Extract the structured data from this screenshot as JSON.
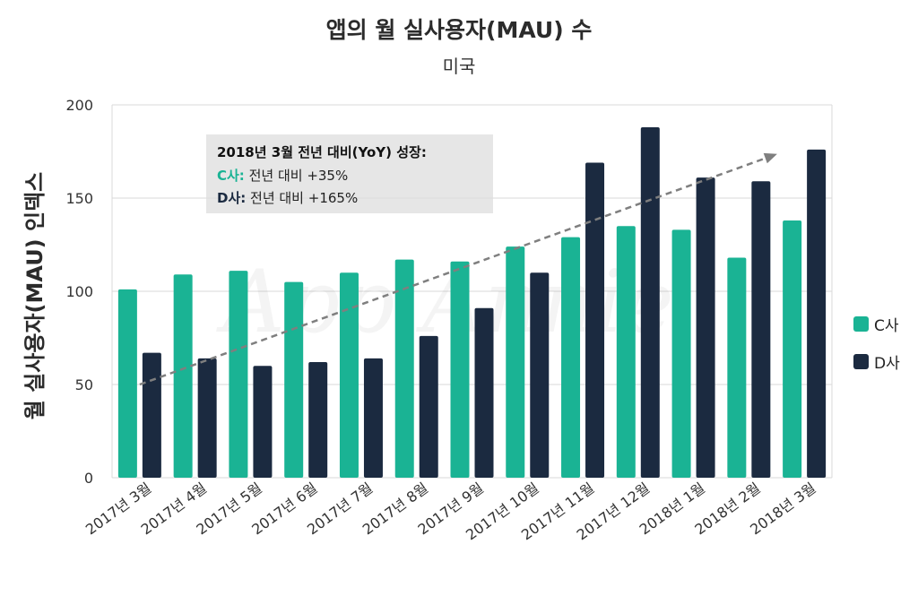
{
  "title": "앱의 월 실사용자(MAU) 수",
  "subtitle": "미국",
  "watermark": "App Annie",
  "annotation": {
    "heading": "2018년 3월 전년 대비(YoY) 성장:",
    "line1_company": "C사:",
    "line1_text": " 전년 대비 +35%",
    "line2_company": "D사:",
    "line2_text": " 전년 대비 +165%"
  },
  "colors": {
    "series_c": "#1ab394",
    "series_d": "#1b2a40",
    "gridline": "#d9d9d9",
    "trend": "#7f7f7f"
  },
  "chart_data": {
    "type": "bar",
    "ylabel": "월 실사용자(MAU) 인덱스",
    "xlabel": "",
    "ylim": [
      0,
      200
    ],
    "yticks": [
      0,
      50,
      100,
      150,
      200
    ],
    "grid": true,
    "legend_position": "right",
    "categories": [
      "2017년 3월",
      "2017년 4월",
      "2017년 5월",
      "2017년 6월",
      "2017년 7월",
      "2017년 8월",
      "2017년 9월",
      "2017년 10월",
      "2017년 11월",
      "2017년 12월",
      "2018년 1월",
      "2018년 2월",
      "2018년 3월"
    ],
    "series": [
      {
        "name": "C사",
        "values": [
          101,
          109,
          111,
          105,
          110,
          117,
          116,
          124,
          129,
          135,
          133,
          118,
          138
        ]
      },
      {
        "name": "D사",
        "values": [
          67,
          64,
          60,
          62,
          64,
          76,
          91,
          110,
          169,
          188,
          161,
          159,
          176
        ]
      }
    ],
    "trendline": {
      "from": {
        "category": "2017년 3월",
        "value": 50
      },
      "to": {
        "category": "2018년 3월",
        "value": 173
      }
    }
  }
}
